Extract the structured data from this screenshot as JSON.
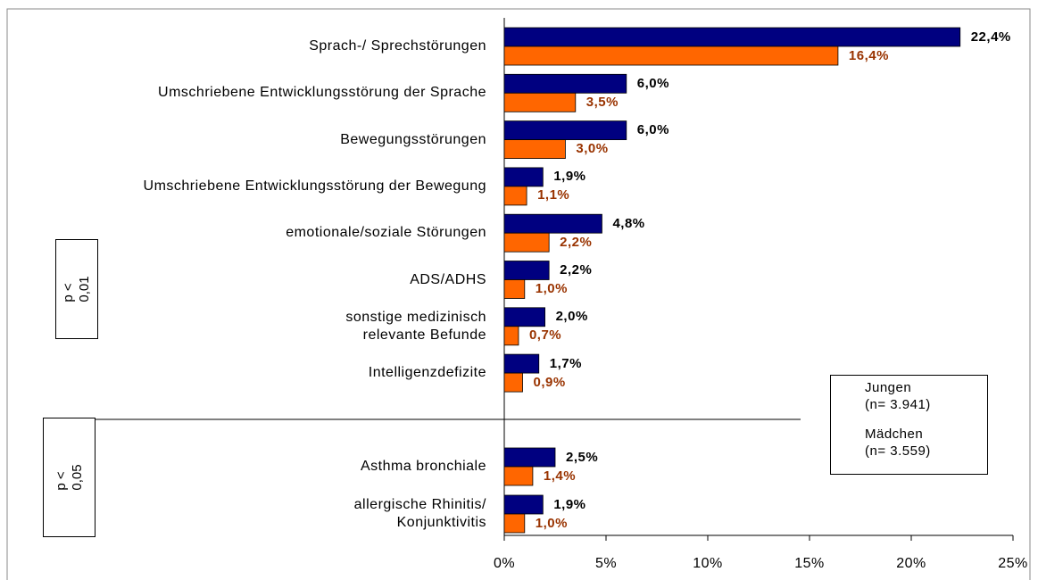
{
  "chart_data": {
    "type": "bar",
    "orientation": "horizontal",
    "categories": [
      "Sprach-/ Sprechstörungen",
      "Umschriebene Entwicklungsstörung der Sprache",
      "Bewegungsstörungen",
      "Umschriebene Entwicklungsstörung der Bewegung",
      "emotionale/soziale Störungen",
      "ADS/ADHS",
      "sonstige medizinisch\nrelevante Befunde",
      "Intelligenzdefizite",
      "Asthma bronchiale",
      "allergische Rhinitis/\nKonjunktivitis"
    ],
    "series": [
      {
        "name": "Jungen\n(n= 3.941)",
        "color": "#000080",
        "label_color": "#000000",
        "values": [
          22.4,
          6.0,
          6.0,
          1.9,
          4.8,
          2.2,
          2.0,
          1.7,
          2.5,
          1.9
        ],
        "value_labels": [
          "22,4%",
          "6,0%",
          "6,0%",
          "1,9%",
          "4,8%",
          "2,2%",
          "2,0%",
          "1,7%",
          "2,5%",
          "1,9%"
        ]
      },
      {
        "name": "Mädchen\n(n= 3.559)",
        "color": "#ff6600",
        "label_color": "#993300",
        "values": [
          16.4,
          3.5,
          3.0,
          1.1,
          2.2,
          1.0,
          0.7,
          0.9,
          1.4,
          1.0
        ],
        "value_labels": [
          "16,4%",
          "3,5%",
          "3,0%",
          "1,1%",
          "2,2%",
          "1,0%",
          "0,7%",
          "0,9%",
          "1,4%",
          "1,0%"
        ]
      }
    ],
    "xlim": [
      0,
      25
    ],
    "xticks": [
      {
        "value": 0,
        "label": "0%"
      },
      {
        "value": 5,
        "label": "5%"
      },
      {
        "value": 10,
        "label": "10%"
      },
      {
        "value": 15,
        "label": "15%"
      },
      {
        "value": 20,
        "label": "20%"
      },
      {
        "value": 25,
        "label": "25%"
      }
    ],
    "annotations": [
      "p < 0,01",
      "p <\n0,05"
    ],
    "legend": "lower right"
  }
}
